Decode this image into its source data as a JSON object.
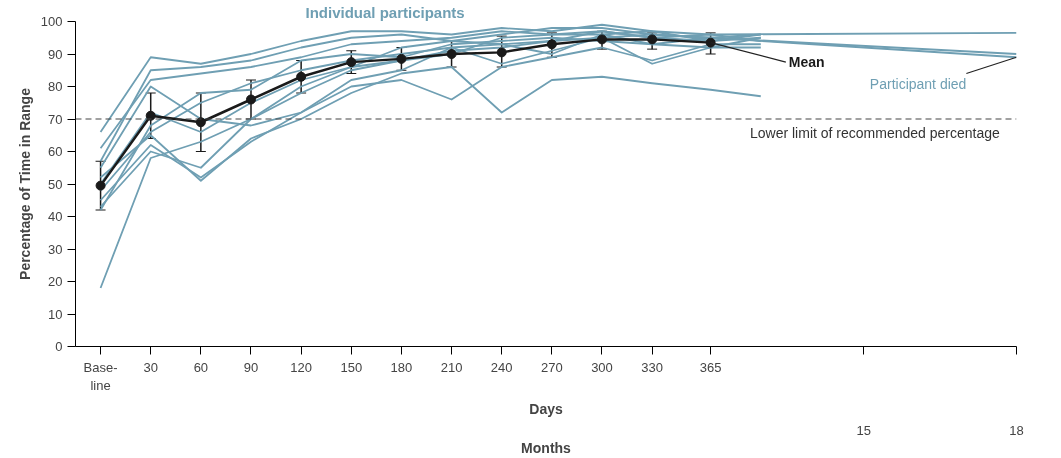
{
  "chart_data": {
    "type": "line",
    "ylabel": "Percentage of Time in Range",
    "xlabel": "Days",
    "x": [
      0,
      30,
      60,
      90,
      120,
      150,
      180,
      210,
      240,
      270,
      300,
      330,
      365
    ],
    "xlim": [
      -15,
      548
    ],
    "ylim": [
      0,
      100
    ],
    "xticks": [
      {
        "value": 0,
        "label": "Base-\nline"
      },
      30,
      60,
      90,
      120,
      150,
      180,
      210,
      240,
      270,
      300,
      330,
      365
    ],
    "x2lim": [
      -0.49,
      18
    ],
    "x2ticks": [
      15,
      18
    ],
    "x2label": "Months",
    "yticks": [
      0,
      10,
      20,
      30,
      40,
      50,
      60,
      70,
      80,
      90,
      100
    ],
    "grid": false,
    "line_style": "solid",
    "series": [
      {
        "color": "#6f9fb3",
        "marker": "none",
        "x": [
          0,
          30,
          60,
          90,
          120,
          150,
          180,
          210,
          240,
          270,
          300,
          330,
          365,
          548
        ],
        "values": [
          66,
          89,
          87,
          90,
          94,
          97,
          97,
          96,
          98,
          97,
          99,
          97,
          96,
          96.5
        ]
      },
      {
        "color": "#6f9fb3",
        "marker": "none",
        "x": [
          0,
          30,
          60,
          90,
          120,
          150,
          180,
          210,
          240,
          270,
          300,
          330,
          365,
          548
        ],
        "values": [
          57,
          85,
          86,
          88,
          92,
          95,
          96,
          94,
          96,
          98,
          98,
          96,
          95,
          89
        ]
      },
      {
        "color": "#6f9fb3",
        "marker": "none",
        "x": [
          0,
          30,
          60,
          90,
          120,
          150,
          180,
          210,
          240,
          270,
          300,
          330,
          365,
          395
        ],
        "values": [
          18,
          58,
          63,
          70,
          78,
          85,
          88,
          90,
          95,
          96,
          97,
          95,
          94,
          95
        ]
      },
      {
        "color": "#6f9fb3",
        "marker": "none",
        "x": [
          0,
          30,
          60,
          90,
          120,
          150,
          180,
          210,
          240,
          270,
          300,
          330,
          365,
          548
        ],
        "values": [
          61,
          82,
          84,
          86,
          89,
          93,
          94,
          95,
          97,
          96,
          96,
          93,
          95,
          90
        ]
      },
      {
        "color": "#6f9fb3",
        "marker": "none",
        "x": [
          0,
          30,
          60,
          90,
          120,
          150,
          180,
          210,
          240,
          270,
          300,
          330,
          365,
          395
        ],
        "values": [
          55,
          80,
          70,
          68,
          72,
          80,
          82,
          76,
          86,
          89,
          92,
          88,
          93,
          93
        ]
      },
      {
        "color": "#6f9fb3",
        "marker": "none",
        "x": [
          0,
          30,
          60,
          90,
          120,
          150,
          180,
          210,
          240,
          270,
          300,
          330,
          365,
          395
        ],
        "values": [
          52,
          65,
          51,
          64,
          70,
          78,
          84,
          86,
          72,
          82,
          83,
          81,
          79,
          77
        ]
      },
      {
        "color": "#6f9fb3",
        "marker": "none",
        "x": [
          0,
          30,
          60,
          90,
          120,
          150,
          180,
          210,
          240,
          270,
          300,
          330,
          365,
          395
        ],
        "values": [
          45,
          62,
          52,
          63,
          72,
          82,
          85,
          92,
          87,
          91,
          95,
          87,
          92,
          92
        ]
      },
      {
        "color": "#6f9fb3",
        "marker": "none",
        "x": [
          0,
          30,
          60,
          90,
          120,
          150,
          180,
          210,
          240,
          270,
          300,
          330,
          365,
          395
        ],
        "values": [
          50,
          72,
          66,
          75,
          82,
          86,
          88,
          91,
          92,
          94,
          95,
          96,
          95,
          96
        ]
      },
      {
        "color": "#6f9fb3",
        "marker": "none",
        "x": [
          0,
          30,
          60,
          90,
          120,
          150,
          180,
          210,
          240,
          270,
          300,
          330,
          365,
          395
        ],
        "values": [
          43,
          60,
          55,
          70,
          80,
          86,
          92,
          94,
          93,
          90,
          96,
          97,
          94,
          96
        ]
      },
      {
        "color": "#6f9fb3",
        "marker": "none",
        "x": [
          0,
          30,
          60,
          90,
          120,
          150,
          180,
          210,
          240,
          270,
          300,
          330,
          365,
          395
        ],
        "values": [
          48,
          66,
          75,
          81,
          85,
          88,
          90,
          92,
          93,
          94,
          97,
          95,
          96,
          94
        ]
      },
      {
        "color": "#6f9fb3",
        "marker": "none",
        "x": [
          0,
          30,
          60,
          90,
          120,
          150,
          180,
          210,
          240,
          270,
          300,
          330,
          365,
          395
        ],
        "values": [
          42,
          68,
          78,
          79,
          88,
          90,
          89,
          93,
          94,
          95,
          94,
          93,
          92,
          95
        ]
      },
      {
        "color": "#1a1a1a",
        "marker": "circle",
        "values": [
          49.5,
          71,
          69,
          76,
          83,
          87.5,
          88.5,
          90,
          90.5,
          93,
          94.5,
          94.5,
          93.5
        ],
        "errors": [
          [
            42,
            57
          ],
          [
            64,
            78
          ],
          [
            60,
            78
          ],
          [
            70,
            82
          ],
          [
            78,
            88
          ],
          [
            84,
            91
          ],
          [
            85,
            92
          ],
          [
            86,
            94
          ],
          [
            86,
            95.5
          ],
          [
            89,
            96.5
          ],
          [
            91.5,
            97
          ],
          [
            91.5,
            96.5
          ],
          [
            90,
            96.5
          ]
        ]
      }
    ],
    "ref_lines": [
      {
        "axis": "y",
        "value": 70,
        "label": "Lower limit of recommended percentage",
        "color": "#444444",
        "line_style": "dashed"
      }
    ],
    "annotations": [
      "Individual participants",
      {
        "text": "Mean",
        "x": 365,
        "y": 93.5
      },
      {
        "text": "Participant died",
        "x": 548,
        "y": 89
      }
    ]
  }
}
